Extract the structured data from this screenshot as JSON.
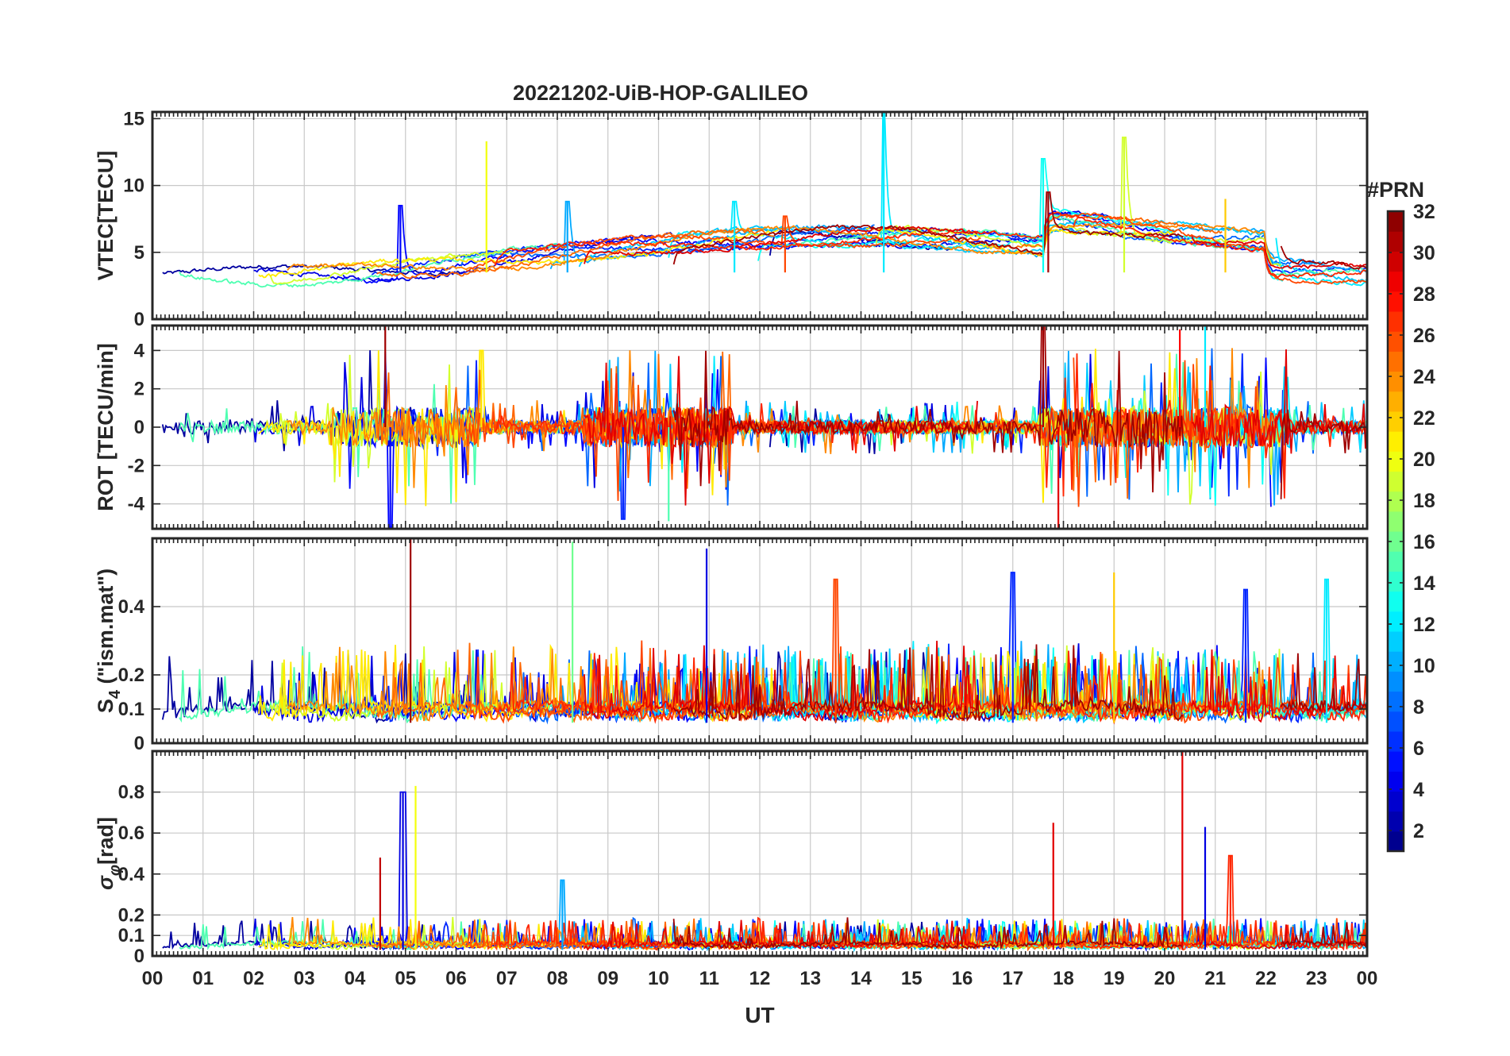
{
  "chart_data": {
    "type": "line",
    "title": "20221202-UiB-HOP-GALILEO",
    "xlabel": "UT",
    "x_tick_labels": [
      "00",
      "01",
      "02",
      "03",
      "04",
      "05",
      "06",
      "07",
      "08",
      "09",
      "10",
      "11",
      "12",
      "13",
      "14",
      "15",
      "16",
      "17",
      "18",
      "19",
      "20",
      "21",
      "22",
      "23",
      "00"
    ],
    "xlim_hours": [
      0,
      24
    ],
    "grid": true,
    "colorbar": {
      "label": "#PRN",
      "range": [
        1,
        32
      ],
      "ticks": [
        "2",
        "4",
        "6",
        "8",
        "10",
        "12",
        "14",
        "16",
        "18",
        "20",
        "22",
        "24",
        "26",
        "28",
        "30",
        "32"
      ],
      "colormap": "jet"
    },
    "panels": [
      {
        "id": "vtec",
        "ylabel": "VTEC[TECU]",
        "ylim": [
          0,
          15.5
        ],
        "yticks": [
          0,
          5,
          10,
          15
        ],
        "ytick_labels": [
          "0",
          "5",
          "10",
          "15"
        ],
        "baseline": 3.5,
        "noise": 0.6,
        "features": [
          {
            "prn": 20,
            "t": 6.6,
            "value": 13.3
          },
          {
            "prn": 12,
            "t": 14.45,
            "value": 15.5
          },
          {
            "prn": 19,
            "t": 19.2,
            "value": 13.6
          },
          {
            "prn": 13,
            "t": 17.6,
            "value": 12.0
          },
          {
            "prn": 31,
            "t": 17.7,
            "value": 9.5
          },
          {
            "prn": 5,
            "t": 4.9,
            "value": 8.5
          },
          {
            "prn": 10,
            "t": 8.2,
            "value": 8.8
          },
          {
            "prn": 12,
            "t": 11.5,
            "value": 8.8
          },
          {
            "prn": 26,
            "t": 12.5,
            "value": 7.7
          },
          {
            "prn": 22,
            "t": 21.2,
            "value": 9.0
          }
        ]
      },
      {
        "id": "rot",
        "ylabel": "ROT [TECU/min]",
        "ylim": [
          -5.3,
          5.3
        ],
        "yticks": [
          -4,
          -2,
          0,
          2,
          4
        ],
        "ytick_labels": [
          "-4",
          "-2",
          "0",
          "2",
          "4"
        ],
        "baseline": 0,
        "noise": 0.35,
        "features": [
          {
            "prn": 31,
            "t": 4.6,
            "value": 5.3
          },
          {
            "prn": 5,
            "t": 4.7,
            "value": -5.2
          },
          {
            "prn": 6,
            "t": 9.3,
            "value": -4.8
          },
          {
            "prn": 15,
            "t": 10.2,
            "value": -4.9
          },
          {
            "prn": 31,
            "t": 17.6,
            "value": 5.3
          },
          {
            "prn": 29,
            "t": 17.9,
            "value": -5.3
          },
          {
            "prn": 12,
            "t": 20.8,
            "value": 5.3
          },
          {
            "prn": 21,
            "t": 6.5,
            "value": 4.0
          },
          {
            "prn": 28,
            "t": 20.3,
            "value": 5.1
          }
        ]
      },
      {
        "id": "s4",
        "ylabel": "S4 (\"ism.mat\")",
        "ylabel_main": "S",
        "ylabel_sub": "4",
        "ylabel_rest": " (\"ism.mat\")",
        "ylim": [
          0,
          0.6
        ],
        "yticks": [
          0,
          0.1,
          0.2,
          0.4
        ],
        "ytick_labels": [
          "0",
          "0.1",
          "0.2",
          "0.4"
        ],
        "baseline": 0.06,
        "noise": 0.03,
        "features": [
          {
            "prn": 31,
            "t": 5.1,
            "value": 0.6
          },
          {
            "prn": 16,
            "t": 8.3,
            "value": 0.59
          },
          {
            "prn": 4,
            "t": 10.95,
            "value": 0.57
          },
          {
            "prn": 26,
            "t": 13.5,
            "value": 0.48
          },
          {
            "prn": 6,
            "t": 17.0,
            "value": 0.5
          },
          {
            "prn": 22,
            "t": 19.0,
            "value": 0.5
          },
          {
            "prn": 12,
            "t": 23.2,
            "value": 0.48
          },
          {
            "prn": 6,
            "t": 21.6,
            "value": 0.45
          }
        ]
      },
      {
        "id": "sigma",
        "ylabel": "σφ[rad]",
        "ylabel_main": "σ",
        "ylabel_sub": "φ",
        "ylabel_rest": "[rad]",
        "ylim": [
          0,
          1.0
        ],
        "yticks": [
          0,
          0.1,
          0.2,
          0.4,
          0.6,
          0.8
        ],
        "ytick_labels": [
          "0",
          "0.1",
          "0.2",
          "0.4",
          "0.6",
          "0.8"
        ],
        "baseline": 0.03,
        "noise": 0.02,
        "features": [
          {
            "prn": 4,
            "t": 4.95,
            "value": 0.8
          },
          {
            "prn": 20,
            "t": 5.2,
            "value": 0.83
          },
          {
            "prn": 30,
            "t": 4.5,
            "value": 0.48
          },
          {
            "prn": 29,
            "t": 17.8,
            "value": 0.65
          },
          {
            "prn": 29,
            "t": 20.35,
            "value": 1.0
          },
          {
            "prn": 4,
            "t": 20.8,
            "value": 0.63
          },
          {
            "prn": 27,
            "t": 21.3,
            "value": 0.49
          },
          {
            "prn": 10,
            "t": 8.1,
            "value": 0.37
          }
        ]
      }
    ],
    "satellites": [
      {
        "prn": 2
      },
      {
        "prn": 4
      },
      {
        "prn": 5
      },
      {
        "prn": 6
      },
      {
        "prn": 8
      },
      {
        "prn": 10
      },
      {
        "prn": 11
      },
      {
        "prn": 12
      },
      {
        "prn": 13
      },
      {
        "prn": 15
      },
      {
        "prn": 19
      },
      {
        "prn": 21
      },
      {
        "prn": 24
      },
      {
        "prn": 25
      },
      {
        "prn": 26
      },
      {
        "prn": 27
      },
      {
        "prn": 29
      },
      {
        "prn": 31
      }
    ]
  }
}
